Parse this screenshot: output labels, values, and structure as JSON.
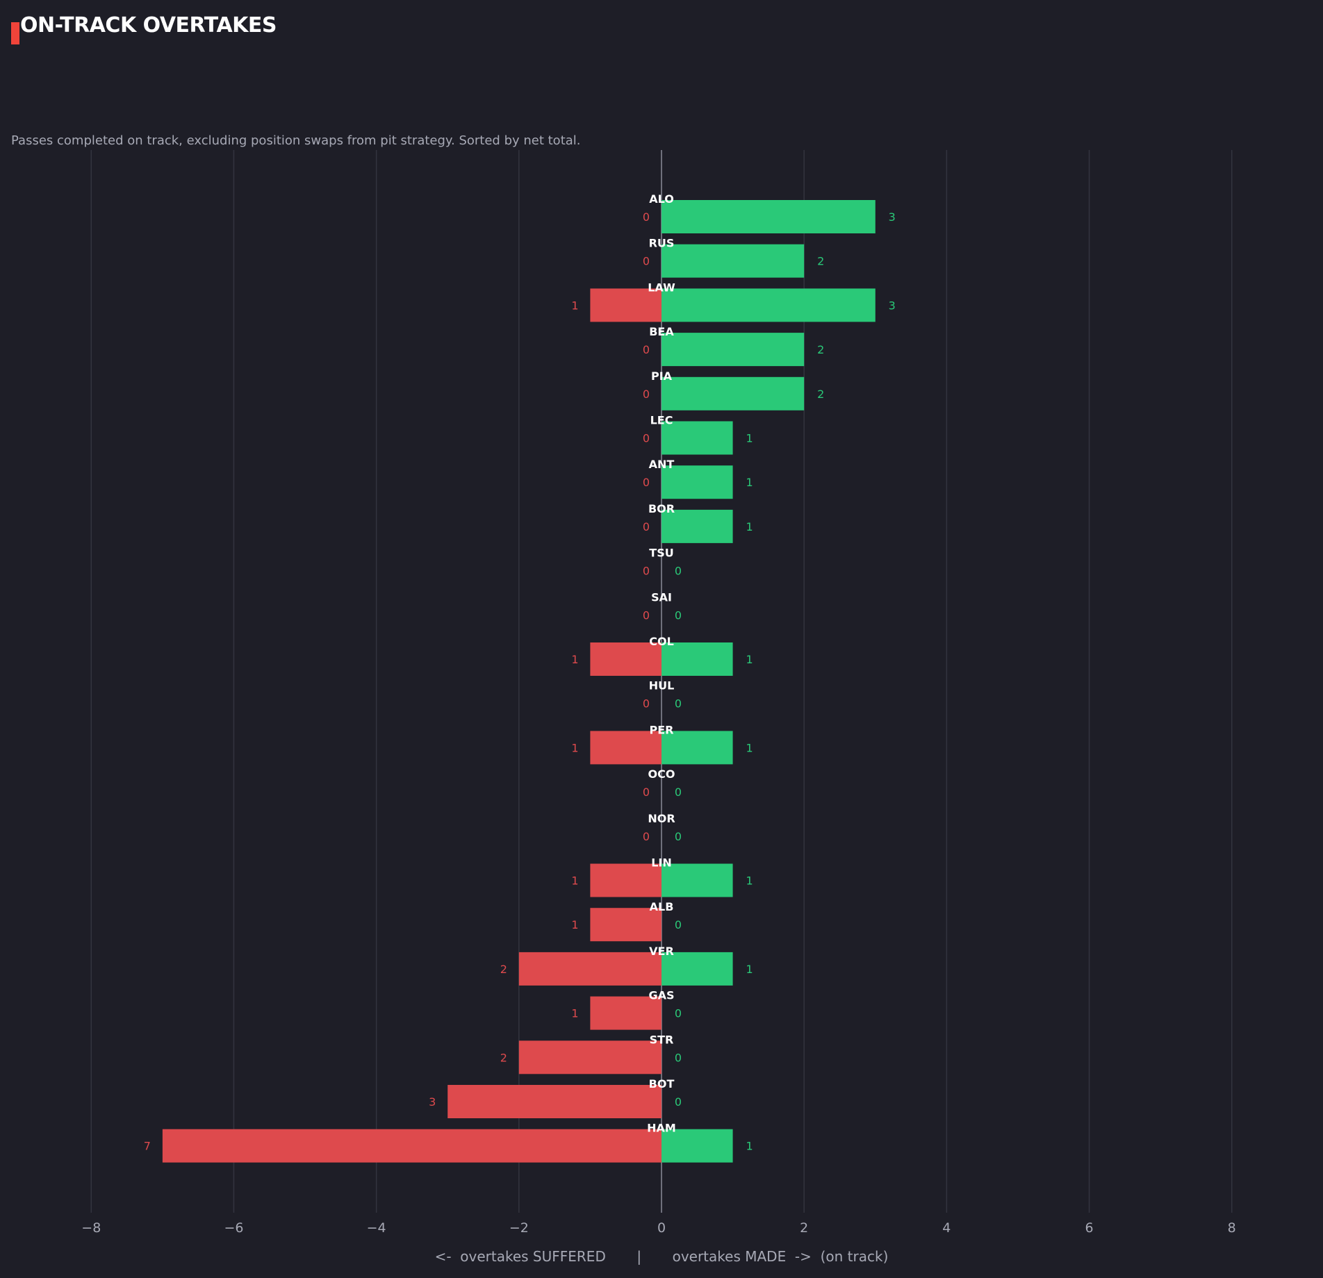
{
  "header": {
    "title": "ON-TRACK OVERTAKES",
    "subtitle": "Passes completed on track, excluding position swaps from pit strategy. Sorted by net total."
  },
  "colors": {
    "background": "#1e1e27",
    "accent": "#f0443a",
    "made": "#2ac978",
    "suffered": "#de4a4d",
    "grid": "#33343f",
    "tick_text": "#a7a9b5"
  },
  "chart_data": {
    "type": "bar",
    "orientation": "horizontal-diverging",
    "categories": [
      "ALO",
      "RUS",
      "LAW",
      "BEA",
      "PIA",
      "LEC",
      "ANT",
      "BOR",
      "TSU",
      "SAI",
      "COL",
      "HUL",
      "PER",
      "OCO",
      "NOR",
      "LIN",
      "ALB",
      "VER",
      "GAS",
      "STR",
      "BOT",
      "HAM"
    ],
    "series": [
      {
        "name": "overtakes SUFFERED",
        "values": [
          0,
          0,
          1,
          0,
          0,
          0,
          0,
          0,
          0,
          0,
          1,
          0,
          1,
          0,
          0,
          1,
          1,
          2,
          1,
          2,
          3,
          7
        ]
      },
      {
        "name": "overtakes MADE",
        "values": [
          3,
          2,
          3,
          2,
          2,
          1,
          1,
          1,
          0,
          0,
          1,
          0,
          1,
          0,
          0,
          1,
          0,
          1,
          0,
          0,
          0,
          1
        ]
      }
    ],
    "xlim": [
      -8.5,
      8.5
    ],
    "xticks": [
      "−8",
      "−6",
      "−4",
      "−2",
      "0",
      "2",
      "4",
      "6",
      "8"
    ],
    "xtick_values": [
      -8,
      -6,
      -4,
      -2,
      0,
      2,
      4,
      6,
      8
    ],
    "xlabel": "<-  overtakes SUFFERED       |       overtakes MADE  ->  (on track)",
    "grid": "vertical"
  }
}
